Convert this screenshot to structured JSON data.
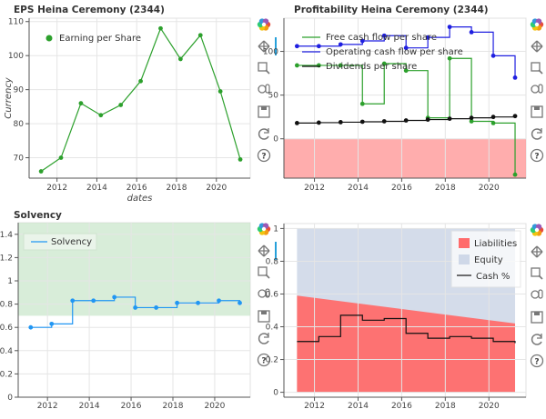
{
  "colors": {
    "green": "#2ca02c",
    "blue": "#1f1fe0",
    "black": "#111111",
    "cyan": "#2196f3",
    "red_area": "#ff9999",
    "solvency_band": "#c8e6c9",
    "liab": "#ff6b6b",
    "equity": "#cfd8e8",
    "grid": "#e5e5e5",
    "toolbar_accent": "#26a0da"
  },
  "toolbar": {
    "icons": [
      "bokeh-logo-icon",
      "pan-icon",
      "box-zoom-icon",
      "wheel-zoom-icon",
      "save-icon",
      "reset-icon",
      "help-icon"
    ]
  },
  "chart_data": [
    {
      "type": "line",
      "title": "EPS Heina Ceremony (2344)",
      "xlabel": "dates",
      "ylabel": "Currency",
      "xlim": [
        2010.6,
        2021.7
      ],
      "ylim": [
        64,
        111
      ],
      "xticks": [
        2012,
        2014,
        2016,
        2018,
        2020
      ],
      "yticks": [
        70,
        80,
        90,
        100,
        110
      ],
      "legend": [
        "Earning per Share"
      ],
      "legend_position": "top-left",
      "series": [
        {
          "name": "Earning per Share",
          "color": "green",
          "x": [
            2011.2,
            2012.2,
            2013.2,
            2014.2,
            2015.2,
            2016.2,
            2017.2,
            2018.2,
            2019.2,
            2020.2,
            2021.2
          ],
          "y": [
            66,
            70,
            86,
            82.5,
            85.5,
            92.5,
            108,
            99,
            106,
            89.5,
            69.5
          ]
        }
      ]
    },
    {
      "type": "line",
      "title": "Profitability Heina Ceremony (2344)",
      "xlabel": "",
      "ylabel": "",
      "xlim": [
        2010.6,
        2021.7
      ],
      "ylim": [
        -45,
        138
      ],
      "xticks": [
        2012,
        2014,
        2016,
        2018,
        2020
      ],
      "yticks": [
        0,
        50,
        100
      ],
      "legend": [
        "Free cash flow per share",
        "Operating cash flow per share",
        "Dividends per share"
      ],
      "legend_position": "top-left",
      "negative_area": true,
      "series": [
        {
          "name": "Free cash flow per share",
          "color": "green",
          "step": true,
          "x": [
            2011.2,
            2012.2,
            2013.2,
            2014.2,
            2015.2,
            2016.2,
            2017.2,
            2018.2,
            2019.2,
            2020.2,
            2021.2
          ],
          "y": [
            84,
            84,
            84,
            40,
            86,
            78,
            24,
            92,
            20,
            18,
            -41
          ]
        },
        {
          "name": "Operating cash flow per share",
          "color": "blue",
          "step": true,
          "x": [
            2011.2,
            2012.2,
            2013.2,
            2014.2,
            2015.2,
            2016.2,
            2017.2,
            2018.2,
            2019.2,
            2020.2,
            2021.2
          ],
          "y": [
            106,
            106,
            108,
            112,
            118,
            104,
            116,
            128,
            122,
            95,
            70
          ]
        },
        {
          "name": "Dividends per share",
          "color": "black",
          "step": true,
          "x": [
            2011.2,
            2012.2,
            2013.2,
            2014.2,
            2015.2,
            2016.2,
            2017.2,
            2018.2,
            2019.2,
            2020.2,
            2021.2
          ],
          "y": [
            18,
            18.5,
            19,
            19.5,
            20,
            21,
            22,
            23,
            24,
            25,
            26
          ]
        }
      ]
    },
    {
      "type": "line",
      "title": "Solvency",
      "xlabel": "",
      "ylabel": "",
      "xlim": [
        2010.6,
        2021.7
      ],
      "ylim": [
        0,
        1.5
      ],
      "xticks": [
        2012,
        2014,
        2016,
        2018,
        2020
      ],
      "yticks": [
        0,
        0.2,
        0.4,
        0.6,
        0.8,
        1.0,
        1.2,
        1.4
      ],
      "ytick_labels": [
        "0",
        "0.2",
        "0.4",
        "0.6",
        "0.8",
        "1",
        "1.2",
        "1.4"
      ],
      "legend": [
        "Solvency"
      ],
      "legend_position": "top-left",
      "band": [
        0.7,
        1.5
      ],
      "series": [
        {
          "name": "Solvency",
          "color": "cyan",
          "step": true,
          "x": [
            2011.2,
            2012.2,
            2013.2,
            2014.2,
            2015.2,
            2016.2,
            2017.2,
            2018.2,
            2019.2,
            2020.2,
            2021.2
          ],
          "y": [
            0.6,
            0.63,
            0.83,
            0.83,
            0.86,
            0.77,
            0.77,
            0.81,
            0.81,
            0.83,
            0.81
          ]
        }
      ]
    },
    {
      "type": "area",
      "title": "",
      "xlabel": "",
      "ylabel": "",
      "xlim": [
        2010.6,
        2021.7
      ],
      "ylim": [
        -0.03,
        1.03
      ],
      "xticks": [
        2012,
        2014,
        2016,
        2018,
        2020
      ],
      "yticks": [
        0,
        0.2,
        0.4,
        0.6,
        0.8,
        1
      ],
      "ytick_labels": [
        "0",
        "0.2",
        "0.4",
        "0.6",
        "0.8",
        "1"
      ],
      "legend": [
        "Liabilities",
        "Equity",
        "Cash %"
      ],
      "legend_position": "top-right",
      "area_x": [
        2011.2,
        2021.2
      ],
      "liabilities": [
        0.59,
        0.42
      ],
      "equity_top": 1.0,
      "series": [
        {
          "name": "Cash %",
          "color": "black",
          "step": true,
          "x": [
            2011.2,
            2012.2,
            2013.2,
            2014.2,
            2015.2,
            2016.2,
            2017.2,
            2018.2,
            2019.2,
            2020.2,
            2021.2
          ],
          "y": [
            0.31,
            0.34,
            0.47,
            0.44,
            0.45,
            0.36,
            0.33,
            0.34,
            0.33,
            0.31,
            0.3
          ]
        }
      ]
    }
  ]
}
